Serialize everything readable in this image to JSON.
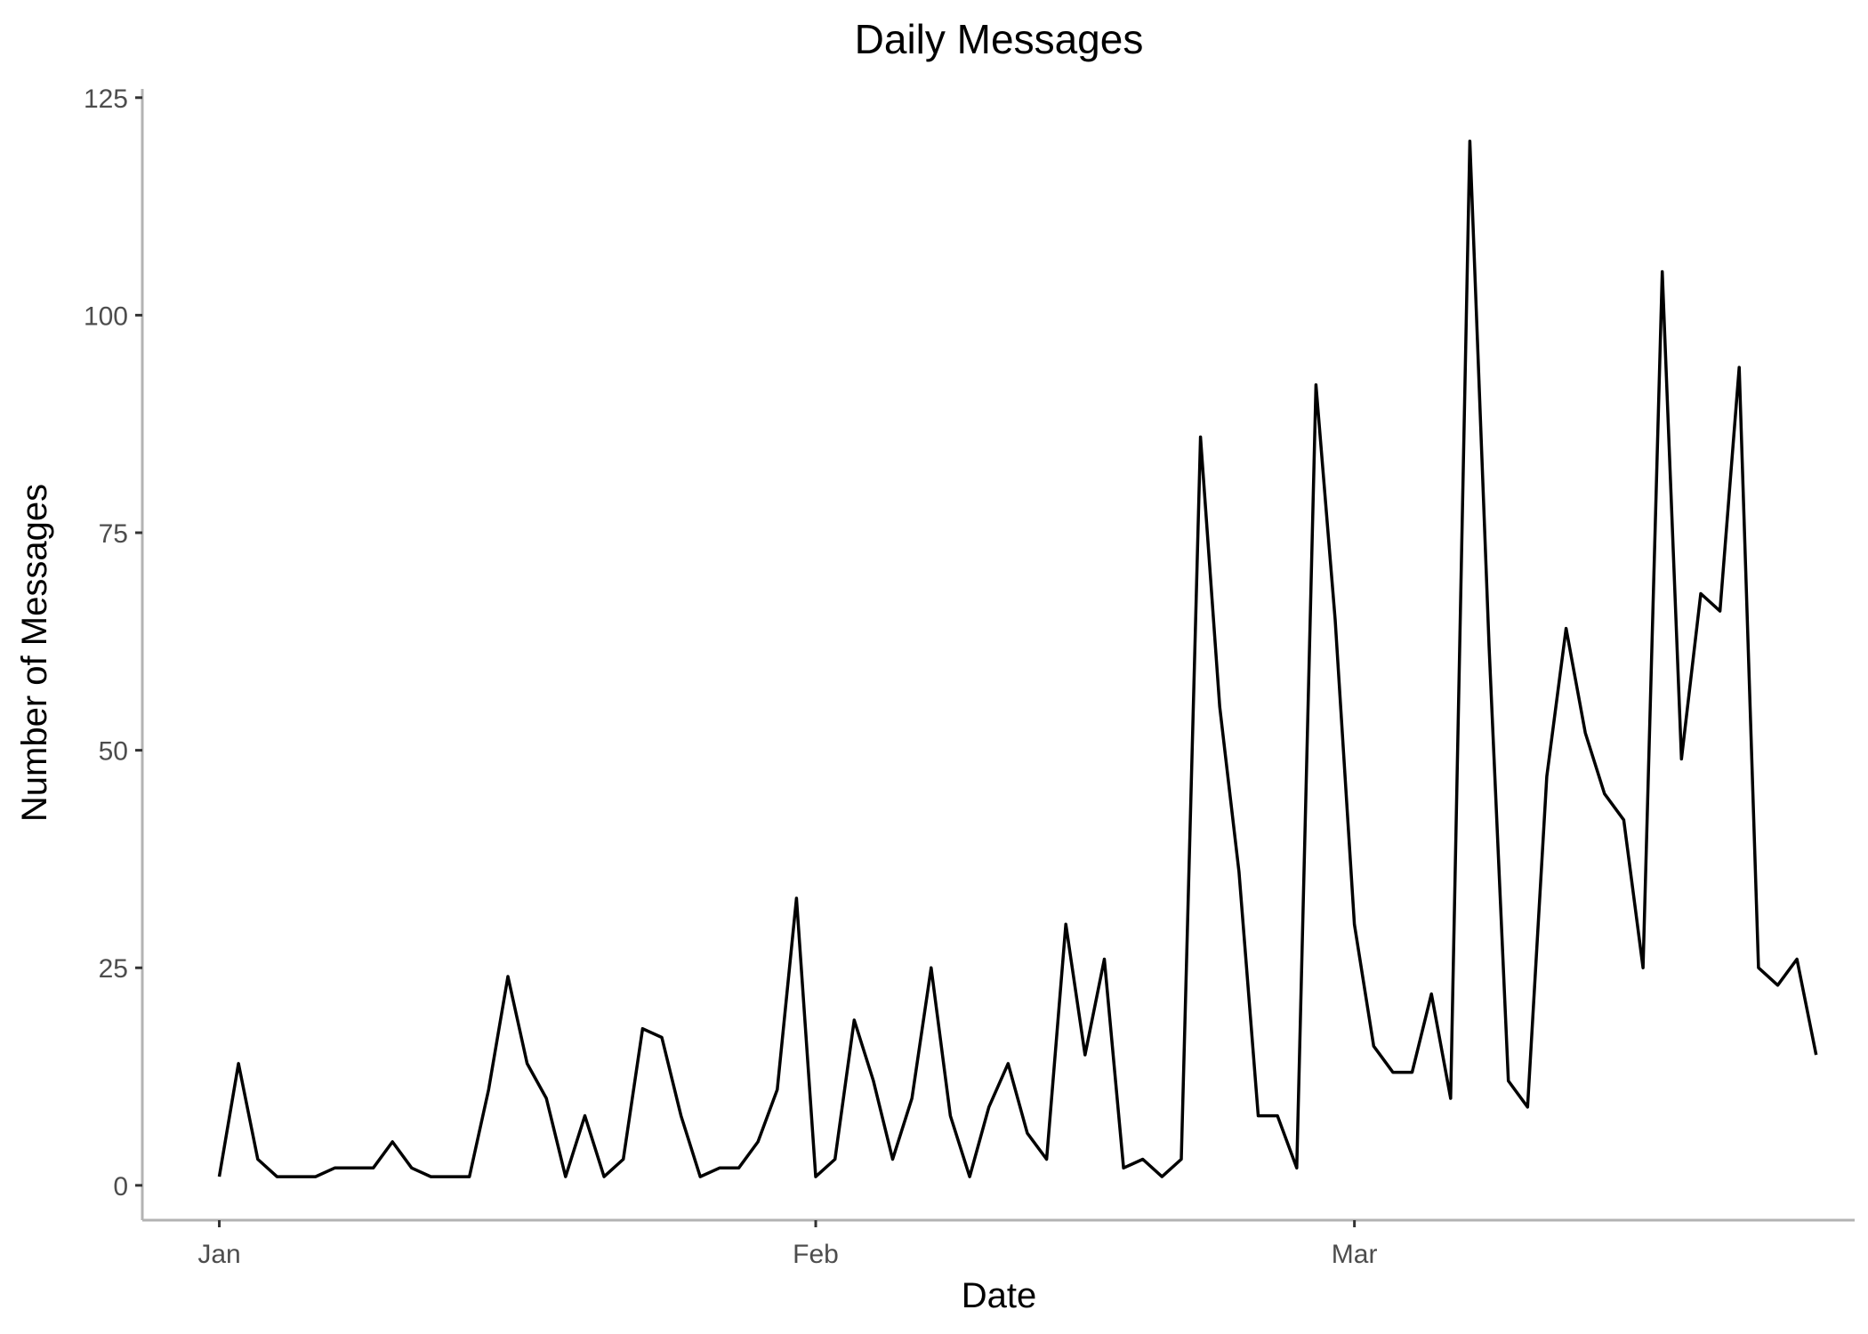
{
  "chart_data": {
    "type": "line",
    "title": "Daily Messages",
    "xlabel": "Date",
    "ylabel": "Number of Messages",
    "ylim": [
      -4,
      126
    ],
    "xlim": [
      "2018-12-28",
      "2019-03-27"
    ],
    "x_ticks": [
      {
        "date": "2019-01-01",
        "label": "Jan"
      },
      {
        "date": "2019-02-01",
        "label": "Feb"
      },
      {
        "date": "2019-03-01",
        "label": "Mar"
      }
    ],
    "y_ticks": [
      0,
      25,
      50,
      75,
      100,
      125
    ],
    "grid": false,
    "legend": "none",
    "line_color": "#000000",
    "series": [
      {
        "x": [
          "2019-01-01",
          "2019-01-02",
          "2019-01-03",
          "2019-01-04",
          "2019-01-05",
          "2019-01-06",
          "2019-01-07",
          "2019-01-08",
          "2019-01-09",
          "2019-01-10",
          "2019-01-11",
          "2019-01-12",
          "2019-01-13",
          "2019-01-14",
          "2019-01-15",
          "2019-01-16",
          "2019-01-17",
          "2019-01-18",
          "2019-01-19",
          "2019-01-20",
          "2019-01-21",
          "2019-01-22",
          "2019-01-23",
          "2019-01-24",
          "2019-01-25",
          "2019-01-26",
          "2019-01-27",
          "2019-01-28",
          "2019-01-29",
          "2019-01-30",
          "2019-01-31",
          "2019-02-01",
          "2019-02-02",
          "2019-02-03",
          "2019-02-04",
          "2019-02-05",
          "2019-02-06",
          "2019-02-07",
          "2019-02-08",
          "2019-02-09",
          "2019-02-10",
          "2019-02-11",
          "2019-02-12",
          "2019-02-13",
          "2019-02-14",
          "2019-02-15",
          "2019-02-16",
          "2019-02-17",
          "2019-02-18",
          "2019-02-19",
          "2019-02-20",
          "2019-02-21",
          "2019-02-22",
          "2019-02-23",
          "2019-02-24",
          "2019-02-25",
          "2019-02-26",
          "2019-02-27",
          "2019-02-28",
          "2019-03-01",
          "2019-03-02",
          "2019-03-03",
          "2019-03-04",
          "2019-03-05",
          "2019-03-06",
          "2019-03-07",
          "2019-03-08",
          "2019-03-09",
          "2019-03-10",
          "2019-03-11",
          "2019-03-12",
          "2019-03-13",
          "2019-03-14",
          "2019-03-15",
          "2019-03-16",
          "2019-03-17",
          "2019-03-18",
          "2019-03-19",
          "2019-03-20",
          "2019-03-21",
          "2019-03-22",
          "2019-03-23",
          "2019-03-24",
          "2019-03-25"
        ],
        "values": [
          1,
          14,
          3,
          1,
          1,
          1,
          2,
          2,
          2,
          5,
          2,
          1,
          1,
          1,
          11,
          24,
          14,
          10,
          1,
          8,
          1,
          3,
          18,
          17,
          8,
          1,
          2,
          2,
          5,
          11,
          33,
          1,
          3,
          19,
          12,
          3,
          10,
          25,
          8,
          1,
          9,
          14,
          6,
          3,
          30,
          15,
          26,
          2,
          3,
          1,
          3,
          86,
          55,
          36,
          8,
          8,
          2,
          92,
          65,
          30,
          16,
          13,
          13,
          22,
          10,
          120,
          62,
          12,
          9,
          47,
          64,
          52,
          45,
          42,
          25,
          105,
          49,
          68,
          66,
          94,
          25,
          23,
          26,
          15
        ]
      }
    ]
  }
}
